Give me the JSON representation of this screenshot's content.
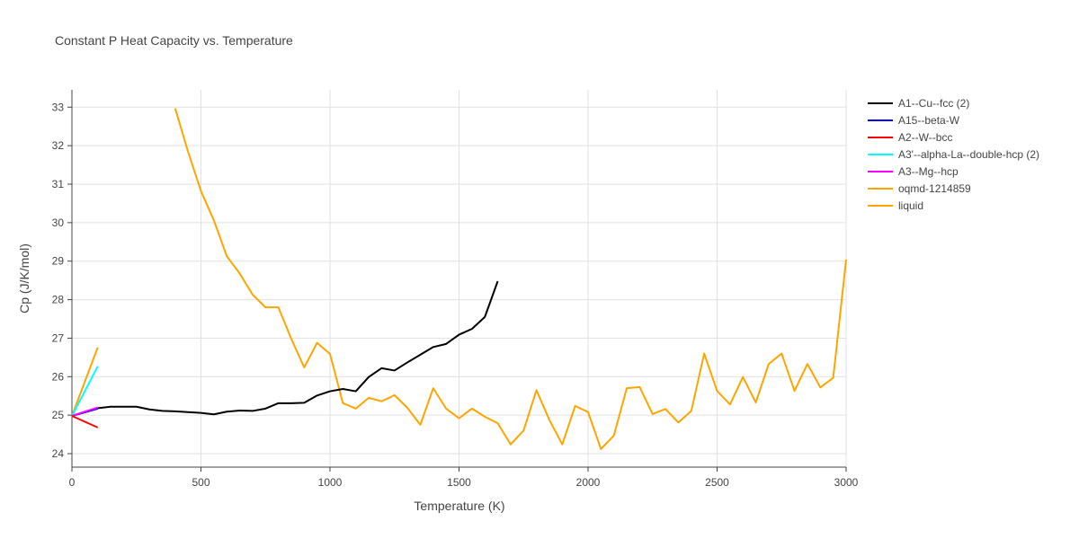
{
  "chart_data": {
    "type": "line",
    "title": "Constant P Heat Capacity vs. Temperature",
    "xlabel": "Temperature (K)",
    "ylabel": "Cp (J/K/mol)",
    "xlim": [
      0,
      3000
    ],
    "ylim": [
      23.65,
      33.45
    ],
    "xticks": [
      0,
      500,
      1000,
      1500,
      2000,
      2500,
      3000
    ],
    "xtick_labels": [
      "0",
      "500",
      "1000",
      "1500",
      "2000",
      "2500",
      "3000"
    ],
    "yticks": [
      24,
      25,
      26,
      27,
      28,
      29,
      30,
      31,
      32,
      33
    ],
    "ytick_labels": [
      "24",
      "25",
      "26",
      "27",
      "28",
      "29",
      "30",
      "31",
      "32",
      "33"
    ],
    "grid": true,
    "legend_position": "right",
    "series": [
      {
        "name": "A1--Cu--fcc (2)",
        "color": "#000000",
        "x": [
          0,
          100,
          150,
          200,
          250,
          300,
          350,
          400,
          450,
          500,
          550,
          600,
          650,
          700,
          750,
          800,
          850,
          900,
          950,
          1000,
          1050,
          1100,
          1150,
          1200,
          1250,
          1300,
          1350,
          1400,
          1450,
          1500,
          1550,
          1600,
          1650
        ],
        "y": [
          24.98,
          25.18,
          25.22,
          25.22,
          25.22,
          25.15,
          25.11,
          25.1,
          25.08,
          25.06,
          25.02,
          25.09,
          25.12,
          25.11,
          25.17,
          25.31,
          25.31,
          25.32,
          25.51,
          25.62,
          25.68,
          25.62,
          25.99,
          26.22,
          26.16,
          26.37,
          26.57,
          26.77,
          26.85,
          27.09,
          27.24,
          27.55,
          28.48
        ]
      },
      {
        "name": "A15--beta-W",
        "color": "#0000ff",
        "x": [
          0,
          100
        ],
        "y": [
          24.98,
          25.17
        ]
      },
      {
        "name": "A2--W--bcc",
        "color": "#ff0000",
        "x": [
          0,
          100
        ],
        "y": [
          24.98,
          24.68
        ]
      },
      {
        "name": "A3'--alpha-La--double-hcp (2)",
        "color": "#00ffff",
        "x": [
          0,
          100
        ],
        "y": [
          24.98,
          26.27
        ]
      },
      {
        "name": "A3--Mg--hcp",
        "color": "#ff00ff",
        "x": [
          0,
          100
        ],
        "y": [
          24.98,
          25.2
        ]
      },
      {
        "name": "oqmd-1214859",
        "color": "#ffa500",
        "x": [
          0,
          100
        ],
        "y": [
          24.98,
          26.76
        ]
      },
      {
        "name": "liquid",
        "color": "#ffa500",
        "x": [
          400,
          450,
          500,
          550,
          600,
          650,
          700,
          750,
          800,
          850,
          900,
          950,
          1000,
          1050,
          1100,
          1150,
          1200,
          1250,
          1300,
          1350,
          1400,
          1450,
          1500,
          1550,
          1600,
          1650,
          1700,
          1750,
          1800,
          1850,
          1900,
          1950,
          2000,
          2050,
          2100,
          2150,
          2200,
          2250,
          2300,
          2350,
          2400,
          2450,
          2500,
          2550,
          2600,
          2650,
          2700,
          2750,
          2800,
          2850,
          2900,
          2950,
          3000
        ],
        "y": [
          32.97,
          31.84,
          30.82,
          30.06,
          29.13,
          28.68,
          28.13,
          27.8,
          27.8,
          26.98,
          26.24,
          26.88,
          26.59,
          25.31,
          25.17,
          25.45,
          25.36,
          25.52,
          25.19,
          24.75,
          25.7,
          25.17,
          24.92,
          25.17,
          24.96,
          24.79,
          24.24,
          24.6,
          25.65,
          24.88,
          24.24,
          25.24,
          25.08,
          24.12,
          24.47,
          25.7,
          25.73,
          25.03,
          25.16,
          24.81,
          25.11,
          26.6,
          25.63,
          25.28,
          25.99,
          25.33,
          26.33,
          26.6,
          25.63,
          26.33,
          25.72,
          25.97,
          29.04
        ]
      }
    ]
  }
}
